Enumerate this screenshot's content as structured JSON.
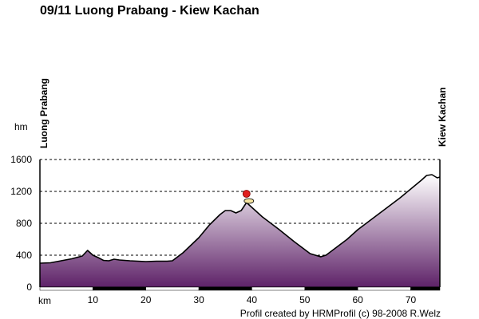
{
  "header": {
    "title": "09/11 Luong Prabang - Kiew Kachan"
  },
  "places": {
    "start": "Luong Prabang",
    "end": "Kiew Kachan"
  },
  "footer": {
    "credit": "Profil created by HRMProfil (c) 98-2008 R.Welz"
  },
  "colors": {
    "fill_top": "#ffffff",
    "fill_bottom": "#5e2268",
    "profile_line": "#000000",
    "grid": "#000000",
    "marker": "#e02020"
  },
  "chart_data": {
    "type": "area",
    "title": "09/11 Luong Prabang - Kiew Kachan",
    "xlabel": "km",
    "ylabel": "hm",
    "xlim": [
      0,
      75.5
    ],
    "ylim": [
      0,
      1600
    ],
    "x_ticks": [
      10,
      20,
      30,
      40,
      50,
      60,
      70
    ],
    "y_ticks": [
      0,
      400,
      800,
      1200,
      1600
    ],
    "grid": "horizontal dashed",
    "series": [
      {
        "x": [
          0,
          2,
          4,
          6,
          8,
          9,
          10,
          11,
          12,
          13,
          14,
          15,
          17,
          20,
          22,
          24,
          25,
          27,
          30,
          32,
          34,
          35,
          36,
          37,
          38,
          39,
          40,
          42,
          45,
          48,
          51,
          53,
          54,
          56,
          58,
          60,
          62,
          65,
          68,
          70,
          72,
          73,
          74,
          75,
          75.5
        ],
        "y": [
          300,
          305,
          330,
          355,
          390,
          460,
          400,
          370,
          335,
          330,
          350,
          340,
          330,
          320,
          325,
          325,
          330,
          430,
          620,
          780,
          910,
          960,
          960,
          930,
          960,
          1060,
          1000,
          880,
          730,
          570,
          420,
          380,
          400,
          500,
          600,
          720,
          820,
          970,
          1120,
          1230,
          1340,
          1400,
          1410,
          1370,
          1380
        ]
      }
    ],
    "annotations": [
      {
        "x": 39,
        "y": 1060,
        "label": "summit marker"
      }
    ]
  }
}
